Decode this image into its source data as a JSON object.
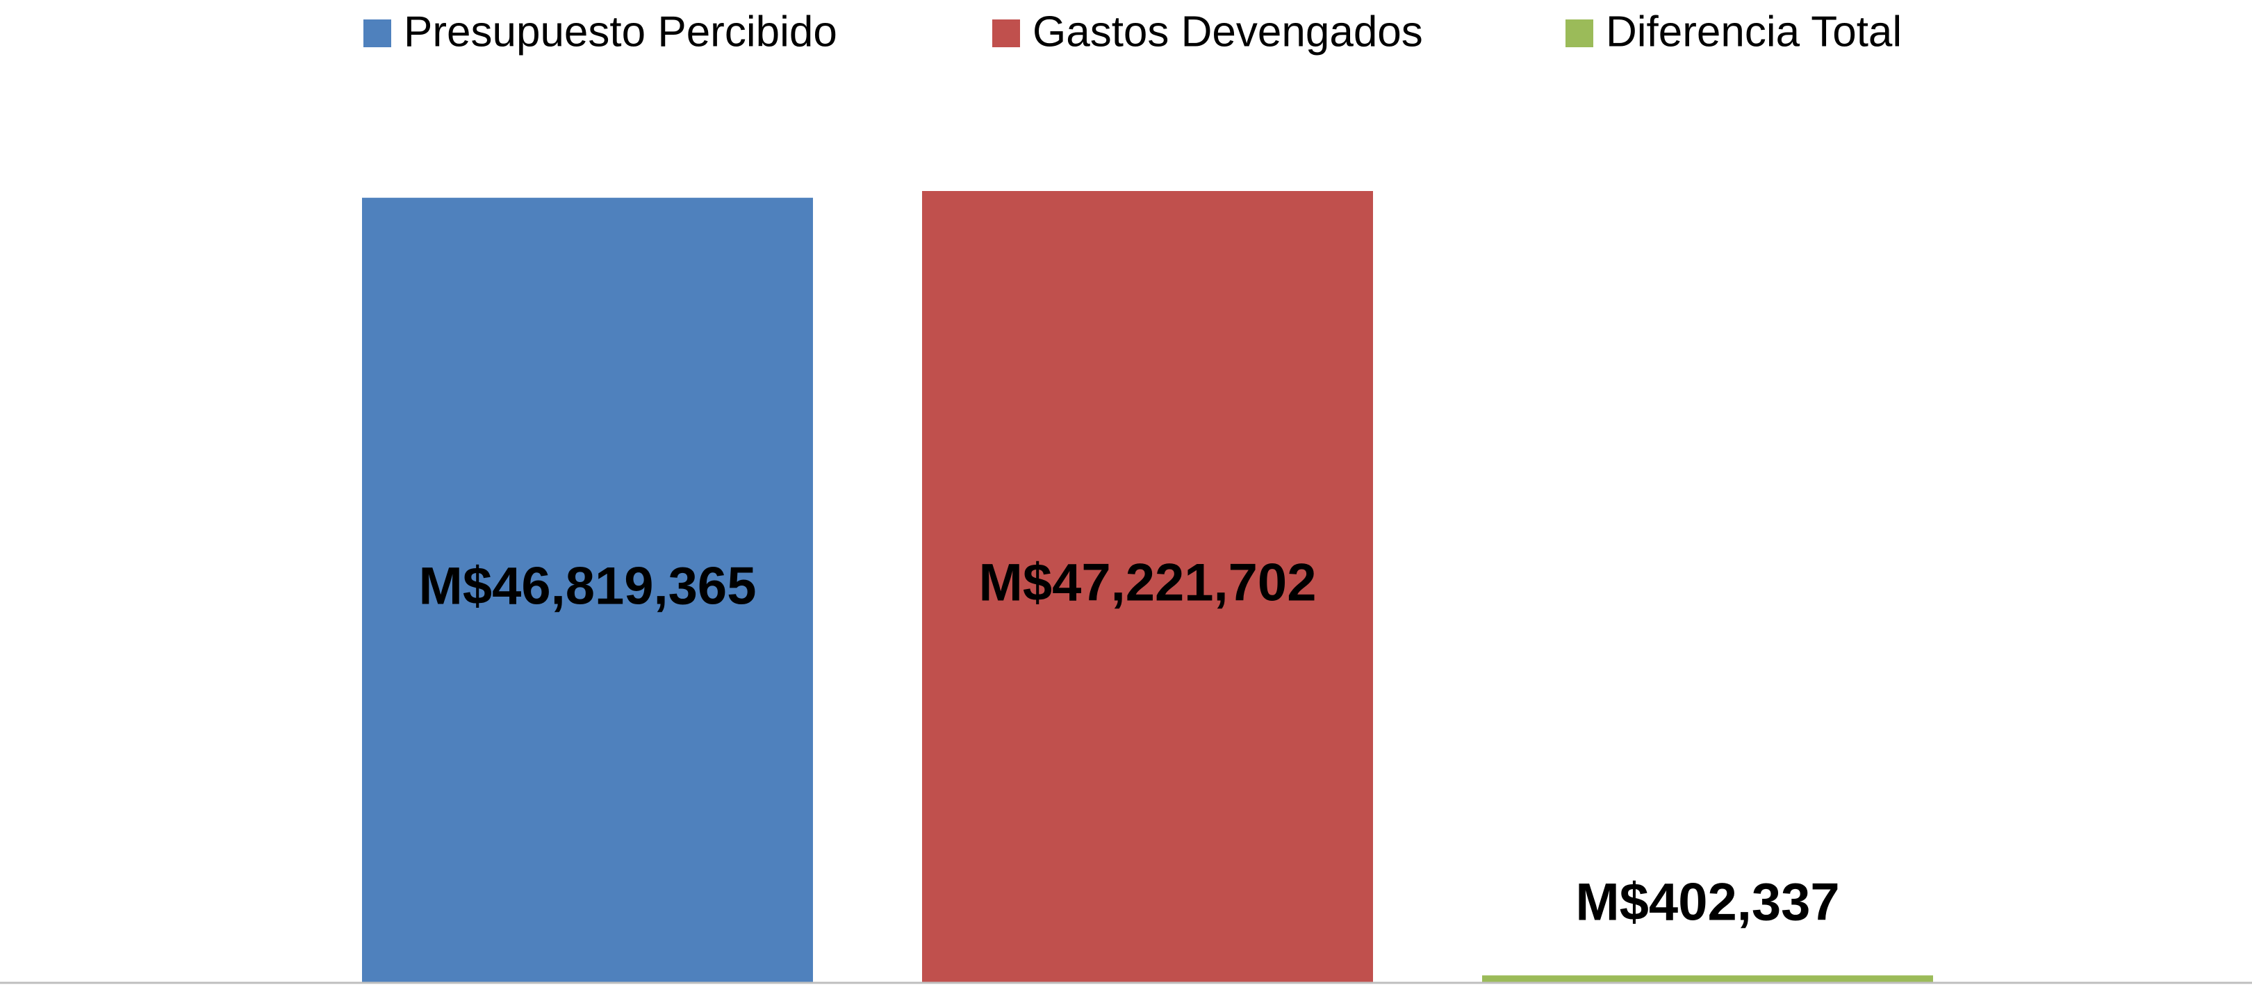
{
  "chart_data": {
    "type": "bar",
    "series": [
      {
        "name": "Presupuesto Percibido",
        "color": "#4f81bd",
        "values": [
          46819365
        ],
        "value_labels": [
          "M$46,819,365"
        ]
      },
      {
        "name": "Gastos Devengados",
        "color": "#c0504d",
        "values": [
          47221702
        ],
        "value_labels": [
          "M$47,221,702"
        ]
      },
      {
        "name": "Diferencia Total",
        "color": "#9bbb59",
        "values": [
          402337
        ],
        "value_labels": [
          "M$402,337"
        ]
      }
    ],
    "legend": "top"
  }
}
